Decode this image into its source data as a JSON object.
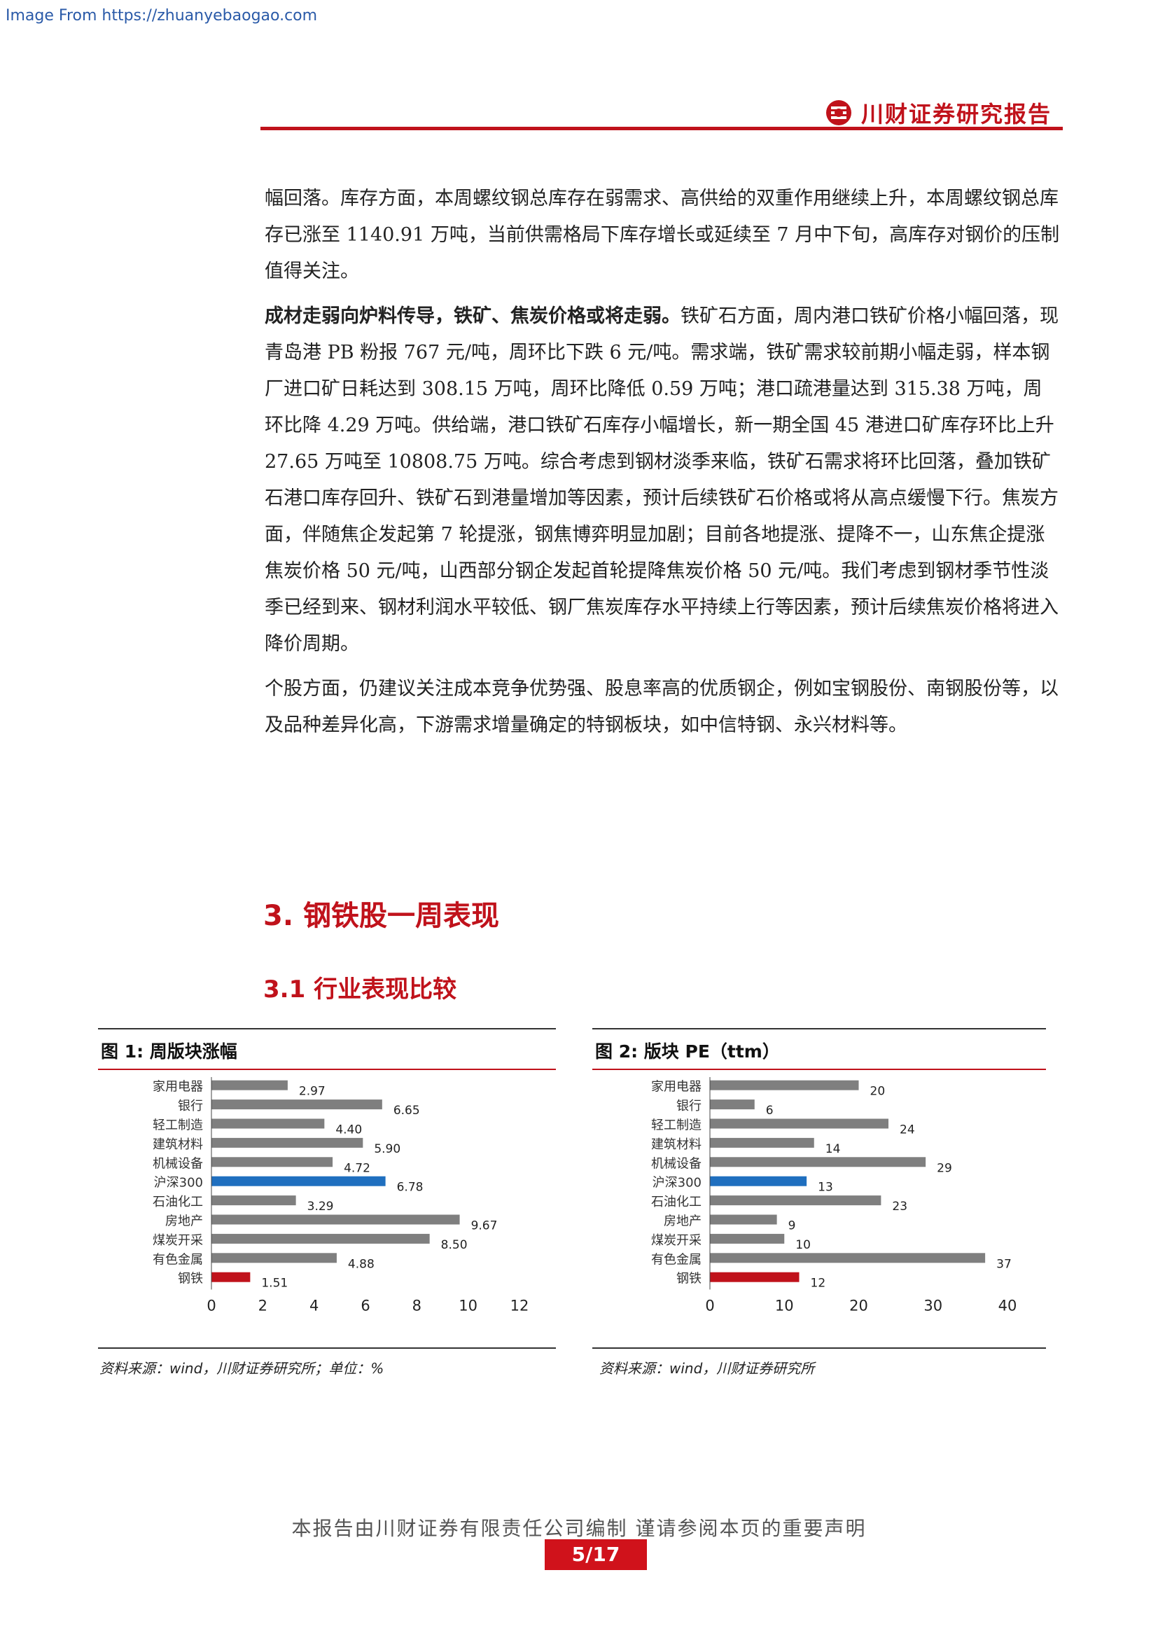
{
  "watermark": "Image From https://zhuanyebaogao.com",
  "header": {
    "brand": "川财证券研究报告"
  },
  "body": {
    "p1": "幅回落。库存方面，本周螺纹钢总库存在弱需求、高供给的双重作用继续上升，本周螺纹钢总库存已涨至 1140.91 万吨，当前供需格局下库存增长或延续至 7 月中下旬，高库存对钢价的压制值得关注。",
    "p2_lead": "成材走弱向炉料传导，铁矿、焦炭价格或将走弱。",
    "p2_rest": "铁矿石方面，周内港口铁矿价格小幅回落，现青岛港 PB 粉报 767 元/吨，周环比下跌 6 元/吨。需求端，铁矿需求较前期小幅走弱，样本钢厂进口矿日耗达到 308.15 万吨，周环比降低 0.59 万吨；港口疏港量达到 315.38 万吨，周环比降 4.29 万吨。供给端，港口铁矿石库存小幅增长，新一期全国 45 港进口矿库存环比上升 27.65 万吨至 10808.75 万吨。综合考虑到钢材淡季来临，铁矿石需求将环比回落，叠加铁矿石港口库存回升、铁矿石到港量增加等因素，预计后续铁矿石价格或将从高点缓慢下行。焦炭方面，伴随焦企发起第 7 轮提涨，钢焦博弈明显加剧；目前各地提涨、提降不一，山东焦企提涨焦炭价格 50 元/吨，山西部分钢企发起首轮提降焦炭价格 50 元/吨。我们考虑到钢材季节性淡季已经到来、钢材利润水平较低、钢厂焦炭库存水平持续上行等因素，预计后续焦炭价格将进入降价周期。",
    "p3": "个股方面，仍建议关注成本竞争优势强、股息率高的优质钢企，例如宝钢股份、南钢股份等，以及品种差异化高，下游需求增量确定的特钢板块，如中信特钢、永兴材料等。"
  },
  "section": {
    "h2": "3. 钢铁股一周表现",
    "h3": "3.1  行业表现比较"
  },
  "colors": {
    "gray": "#7f7f7f",
    "blue": "#1f6fbf",
    "red": "#c0121b"
  },
  "chart_data": [
    {
      "type": "bar",
      "orientation": "horizontal",
      "title": "图  1:  周版块涨幅",
      "categories": [
        "家用电器",
        "银行",
        "轻工制造",
        "建筑材料",
        "机械设备",
        "沪深300",
        "石油化工",
        "房地产",
        "煤炭开采",
        "有色金属",
        "钢铁"
      ],
      "values": [
        2.97,
        6.65,
        4.4,
        5.9,
        4.72,
        6.78,
        3.29,
        9.67,
        8.5,
        4.88,
        1.51
      ],
      "labels": [
        "2.97",
        "6.65",
        "4.40",
        "5.90",
        "4.72",
        "6.78",
        "3.29",
        "9.67",
        "8.50",
        "4.88",
        "1.51"
      ],
      "xlim": [
        0,
        12
      ],
      "xticks": [
        0,
        2,
        4,
        6,
        8,
        10,
        12
      ],
      "highlight": {
        "沪深300": "blue",
        "钢铁": "red"
      },
      "source": "资料来源：wind，川财证券研究所；单位：%"
    },
    {
      "type": "bar",
      "orientation": "horizontal",
      "title": "图  2:  版块 PE（ttm）",
      "categories": [
        "家用电器",
        "银行",
        "轻工制造",
        "建筑材料",
        "机械设备",
        "沪深300",
        "石油化工",
        "房地产",
        "煤炭开采",
        "有色金属",
        "钢铁"
      ],
      "values": [
        20,
        6,
        24,
        14,
        29,
        13,
        23,
        9,
        10,
        37,
        12
      ],
      "labels": [
        "20",
        "6",
        "24",
        "14",
        "29",
        "13",
        "23",
        "9",
        "10",
        "37",
        "12"
      ],
      "xlim": [
        0,
        40
      ],
      "xticks": [
        0,
        10,
        20,
        30,
        40
      ],
      "highlight": {
        "沪深300": "blue",
        "钢铁": "red"
      },
      "source": "资料来源：wind，川财证券研究所"
    }
  ],
  "footer": {
    "note": "本报告由川财证券有限责任公司编制  谨请参阅本页的重要声明",
    "page": "5/17"
  }
}
